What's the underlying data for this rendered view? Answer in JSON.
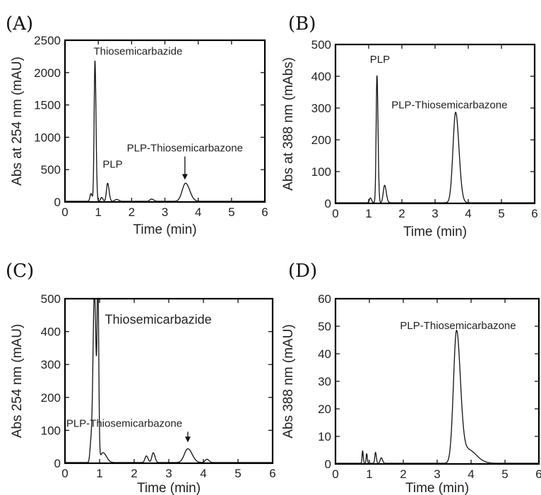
{
  "chart_data": [
    {
      "type": "line",
      "panel_label": "(A)",
      "xlabel": "Time (min)",
      "ylabel": "Abs at 254 nm (mAU)",
      "xlim": [
        0,
        6
      ],
      "ylim": [
        0,
        2500
      ],
      "xticks": [
        "0",
        "1",
        "2",
        "3",
        "4",
        "5",
        "6"
      ],
      "yticks": [
        "0",
        "500",
        "1000",
        "1500",
        "2000",
        "2500"
      ],
      "annotations": [
        {
          "text": "Thiosemicarbazide",
          "x": 0.9,
          "y": 2190,
          "arrow": false
        },
        {
          "text": "PLP",
          "x": 1.3,
          "y": 420,
          "arrow": false
        },
        {
          "text": "PLP-Thiosemicarbazone",
          "x": 3.6,
          "y": 300,
          "arrow": true
        }
      ],
      "peaks": [
        {
          "t": 0.78,
          "h": 120,
          "w": 0.03
        },
        {
          "t": 0.9,
          "h": 2170,
          "w": 0.025
        },
        {
          "t": 1.1,
          "h": 60,
          "w": 0.03
        },
        {
          "t": 1.28,
          "h": 280,
          "w": 0.035
        },
        {
          "t": 1.55,
          "h": 30,
          "w": 0.05
        },
        {
          "t": 2.6,
          "h": 35,
          "w": 0.05
        },
        {
          "t": 3.62,
          "h": 280,
          "w": 0.1
        }
      ]
    },
    {
      "type": "line",
      "panel_label": "(B)",
      "xlabel": "Time (min)",
      "ylabel": "Abs at 388 nm (mAbs)",
      "xlim": [
        0,
        6
      ],
      "ylim": [
        0,
        500
      ],
      "xticks": [
        "0",
        "1",
        "2",
        "3",
        "4",
        "5",
        "6"
      ],
      "yticks": [
        "0",
        "100",
        "200",
        "300",
        "400",
        "500"
      ],
      "annotations": [
        {
          "text": "PLP",
          "x": 1.25,
          "y": 420,
          "arrow": false
        },
        {
          "text": "PLP-Thiosemicarbazone",
          "x": 3.6,
          "y": 290,
          "arrow": false
        }
      ],
      "peaks": [
        {
          "t": 1.05,
          "h": 15,
          "w": 0.03
        },
        {
          "t": 1.25,
          "h": 400,
          "w": 0.025
        },
        {
          "t": 1.48,
          "h": 55,
          "w": 0.04
        },
        {
          "t": 3.62,
          "h": 285,
          "w": 0.08
        }
      ]
    },
    {
      "type": "line",
      "panel_label": "(C)",
      "xlabel": "Time (min)",
      "ylabel": "Abs 254 nm (mAU)",
      "xlim": [
        0,
        6
      ],
      "ylim": [
        0,
        500
      ],
      "xticks": [
        "0",
        "1",
        "2",
        "3",
        "4",
        "5",
        "6"
      ],
      "yticks": [
        "0",
        "100",
        "200",
        "300",
        "400",
        "500"
      ],
      "annotations": [
        {
          "text": "Thiosemicarbazide",
          "x": 0.95,
          "y": 420,
          "arrow": false
        },
        {
          "text": "PLP-Thiosemicarbazone",
          "x": 3.55,
          "y": 55,
          "arrow": true
        }
      ],
      "peaks": [
        {
          "t": 0.75,
          "h": 55,
          "w": 0.03
        },
        {
          "t": 0.85,
          "h": 520,
          "w": 0.04
        },
        {
          "t": 0.95,
          "h": 520,
          "w": 0.02
        },
        {
          "t": 1.1,
          "h": 30,
          "w": 0.08
        },
        {
          "t": 2.35,
          "h": 20,
          "w": 0.04
        },
        {
          "t": 2.55,
          "h": 30,
          "w": 0.04
        },
        {
          "t": 3.55,
          "h": 42,
          "w": 0.1
        },
        {
          "t": 4.1,
          "h": 10,
          "w": 0.05
        }
      ]
    },
    {
      "type": "line",
      "panel_label": "(D)",
      "xlabel": "Time (min)",
      "ylabel": "Abs 388 nm (mAU)",
      "xlim": [
        0,
        6
      ],
      "ylim": [
        0,
        60
      ],
      "xticks": [
        "0",
        "1",
        "2",
        "3",
        "4",
        "5",
        "6"
      ],
      "yticks": [
        "0",
        "10",
        "20",
        "30",
        "40",
        "50",
        "60"
      ],
      "annotations": [
        {
          "text": "PLP-Thiosemicarbazone",
          "x": 3.57,
          "y": 48,
          "arrow": false
        }
      ],
      "peaks": [
        {
          "t": 0.8,
          "h": 4.5,
          "w": 0.015
        },
        {
          "t": 0.92,
          "h": 3.5,
          "w": 0.015
        },
        {
          "t": 1.18,
          "h": 4,
          "w": 0.02
        },
        {
          "t": 1.35,
          "h": 2,
          "w": 0.03
        },
        {
          "t": 3.57,
          "h": 47,
          "w": 0.09
        },
        {
          "t": 3.9,
          "h": 5,
          "w": 0.2
        }
      ]
    }
  ]
}
